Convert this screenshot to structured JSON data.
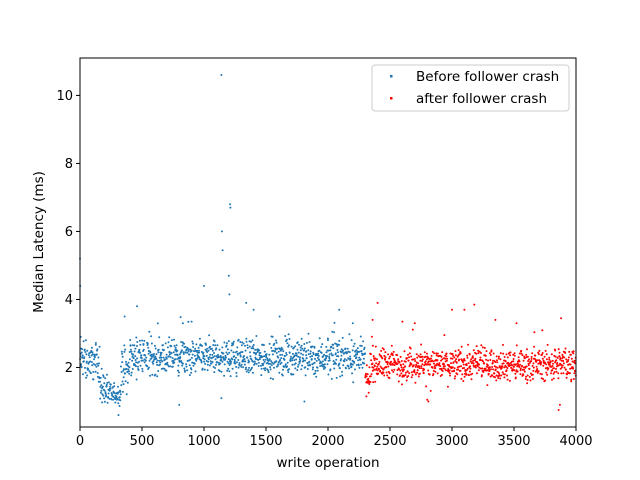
{
  "chart_data": {
    "type": "scatter",
    "title": "",
    "xlabel": "write operation",
    "ylabel": "Median Latency (ms)",
    "xlim": [
      0,
      4000
    ],
    "ylim": [
      0.25,
      11.1
    ],
    "xticks": [
      0,
      500,
      1000,
      1500,
      2000,
      2500,
      3000,
      3500,
      4000
    ],
    "yticks": [
      2,
      4,
      6,
      8,
      10
    ],
    "grid": false,
    "legend_position": "top-right",
    "series": [
      {
        "name": "Before follower crash",
        "color": "#1f77b4",
        "x_range": [
          0,
          2300
        ],
        "segments": [
          {
            "x": [
              0,
              160
            ],
            "center": 2.2,
            "spread": 0.45
          },
          {
            "x": [
              160,
              220
            ],
            "center": 1.4,
            "spread": 0.35
          },
          {
            "x": [
              220,
              330
            ],
            "center": 1.2,
            "spread": 0.25
          },
          {
            "x": [
              330,
              400
            ],
            "center": 1.9,
            "spread": 0.5
          },
          {
            "x": [
              400,
              2300
            ],
            "center": 2.3,
            "spread": 0.42
          }
        ],
        "outliers": [
          {
            "x": 0,
            "y": 5.2
          },
          {
            "x": 2,
            "y": 4.4
          },
          {
            "x": 6,
            "y": 2.9
          },
          {
            "x": 360,
            "y": 3.5
          },
          {
            "x": 460,
            "y": 3.8
          },
          {
            "x": 1000,
            "y": 4.4
          },
          {
            "x": 1140,
            "y": 10.6
          },
          {
            "x": 1145,
            "y": 6.0
          },
          {
            "x": 1150,
            "y": 5.45
          },
          {
            "x": 1200,
            "y": 4.7
          },
          {
            "x": 1205,
            "y": 4.15
          },
          {
            "x": 1210,
            "y": 6.8
          },
          {
            "x": 1213,
            "y": 6.7
          },
          {
            "x": 1340,
            "y": 3.9
          },
          {
            "x": 1400,
            "y": 3.7
          },
          {
            "x": 1610,
            "y": 3.5
          },
          {
            "x": 2090,
            "y": 3.7
          },
          {
            "x": 2200,
            "y": 3.3
          },
          {
            "x": 830,
            "y": 3.3
          },
          {
            "x": 900,
            "y": 3.35
          },
          {
            "x": 800,
            "y": 0.9
          },
          {
            "x": 1140,
            "y": 1.1
          },
          {
            "x": 1810,
            "y": 1.0
          }
        ]
      },
      {
        "name": "after follower crash",
        "color": "#ff0000",
        "x_range": [
          2300,
          4000
        ],
        "segments": [
          {
            "x": [
              2300,
              2340
            ],
            "center": 1.6,
            "spread": 0.35
          },
          {
            "x": [
              2340,
              4000
            ],
            "center": 2.1,
            "spread": 0.38
          }
        ],
        "outliers": [
          {
            "x": 2400,
            "y": 3.9
          },
          {
            "x": 2360,
            "y": 3.4
          },
          {
            "x": 2600,
            "y": 3.35
          },
          {
            "x": 2700,
            "y": 3.3
          },
          {
            "x": 3000,
            "y": 3.7
          },
          {
            "x": 3100,
            "y": 3.7
          },
          {
            "x": 3180,
            "y": 3.85
          },
          {
            "x": 3350,
            "y": 3.4
          },
          {
            "x": 3520,
            "y": 3.3
          },
          {
            "x": 3880,
            "y": 3.45
          },
          {
            "x": 2800,
            "y": 1.05
          },
          {
            "x": 2810,
            "y": 1.0
          },
          {
            "x": 3860,
            "y": 0.75
          },
          {
            "x": 3870,
            "y": 0.9
          },
          {
            "x": 2310,
            "y": 1.15
          }
        ]
      }
    ]
  }
}
